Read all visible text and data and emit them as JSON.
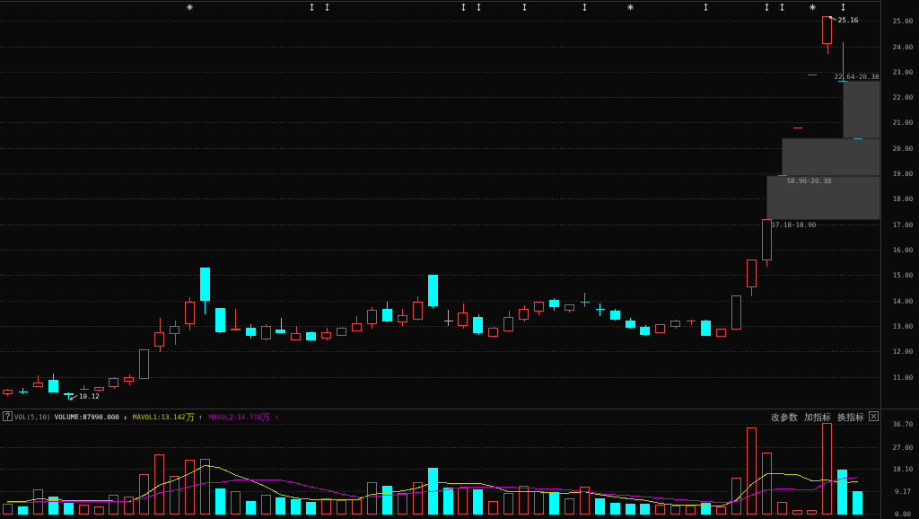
{
  "chart_data": [
    {
      "type": "candlestick",
      "categories": [
        null,
        null,
        null,
        null,
        null,
        null,
        null,
        null,
        null,
        null,
        null,
        null,
        null,
        null,
        null,
        null,
        null,
        null,
        null,
        null,
        null,
        null,
        null,
        null,
        null,
        null,
        null,
        null,
        null,
        null,
        null,
        null,
        null,
        null,
        null,
        null,
        null,
        null,
        null,
        null,
        null,
        null,
        null,
        null,
        null,
        null,
        null,
        null,
        null,
        null,
        null,
        null,
        null,
        null,
        null,
        null,
        null,
        null
      ],
      "ohlc": [
        [
          10.32,
          10.51,
          10.26,
          10.48
        ],
        [
          10.42,
          10.58,
          10.33,
          10.42
        ],
        [
          10.61,
          11.06,
          10.6,
          10.76
        ],
        [
          10.85,
          11.12,
          10.41,
          10.41
        ],
        [
          10.33,
          10.38,
          10.12,
          10.32
        ],
        [
          10.52,
          10.67,
          10.44,
          10.52
        ],
        [
          10.48,
          10.6,
          10.42,
          10.59
        ],
        [
          10.61,
          11,
          10.54,
          10.93
        ],
        [
          10.84,
          11.08,
          10.68,
          10.98
        ],
        [
          10.94,
          12.07,
          10.94,
          12.07
        ],
        [
          12.2,
          13.32,
          11.96,
          12.72
        ],
        [
          12.71,
          13.21,
          12.27,
          12.99
        ],
        [
          13.08,
          14.13,
          12.84,
          13.92
        ],
        [
          15.27,
          15.27,
          13.47,
          14.01
        ],
        [
          13.69,
          13.69,
          12.7,
          12.76
        ],
        [
          12.87,
          13.66,
          12.81,
          12.89
        ],
        [
          12.91,
          13.06,
          12.51,
          12.64
        ],
        [
          12.48,
          13.06,
          12.42,
          12.99
        ],
        [
          12.85,
          13.32,
          12.73,
          12.73
        ],
        [
          12.44,
          13,
          12.44,
          12.71
        ],
        [
          12.73,
          12.78,
          12.45,
          12.45
        ],
        [
          12.54,
          12.93,
          12.45,
          12.72
        ],
        [
          12.63,
          12.96,
          12.63,
          12.9
        ],
        [
          12.81,
          13.39,
          12.81,
          13.09
        ],
        [
          13.08,
          13.75,
          12.9,
          13.62
        ],
        [
          13.67,
          13.95,
          13.15,
          13.21
        ],
        [
          13.15,
          13.66,
          13.01,
          13.41
        ],
        [
          13.28,
          14.16,
          13.21,
          13.93
        ],
        [
          15,
          15,
          13.72,
          13.79
        ],
        [
          13.21,
          13.63,
          13.01,
          13.21
        ],
        [
          13.03,
          13.88,
          12.9,
          13.5
        ],
        [
          13.33,
          13.46,
          12.66,
          12.73
        ],
        [
          12.6,
          12.96,
          12.55,
          12.9
        ],
        [
          12.79,
          13.6,
          12.77,
          13.34
        ],
        [
          13.28,
          13.82,
          13.16,
          13.67
        ],
        [
          13.59,
          13.92,
          13.41,
          13.92
        ],
        [
          14,
          14.08,
          13.61,
          13.76
        ],
        [
          13.61,
          13.85,
          13.54,
          13.82
        ],
        [
          13.92,
          14.3,
          13.75,
          13.92
        ],
        [
          13.64,
          13.9,
          13.39,
          13.64
        ],
        [
          13.57,
          13.68,
          13.21,
          13.25
        ],
        [
          13.19,
          13.3,
          12.88,
          12.94
        ],
        [
          12.95,
          13.05,
          12.6,
          12.66
        ],
        [
          12.73,
          13.04,
          12.7,
          13.04
        ],
        [
          12.98,
          13.25,
          12.9,
          13.19
        ],
        [
          13.2,
          13.25,
          13.04,
          13.2
        ],
        [
          13.2,
          13.24,
          12.6,
          12.63
        ],
        [
          12.6,
          12.9,
          12.57,
          12.87
        ],
        [
          12.88,
          14.18,
          12.85,
          14.18
        ],
        [
          14.53,
          15.6,
          14.16,
          15.6
        ],
        [
          15.59,
          17.18,
          15.33,
          17.18
        ],
        [
          18.9,
          18.9,
          18.9,
          18.9
        ],
        [
          20.79,
          20.79,
          20.79,
          20.79
        ],
        [
          22.87,
          22.87,
          22.87,
          22.87
        ],
        [
          24.09,
          25.16,
          23.69,
          25.16
        ],
        [
          22.64,
          24.16,
          22.64,
          22.64
        ],
        [
          20.38,
          20.38,
          20.38,
          20.38
        ],
        null
      ],
      "colors": [
        "#e04545",
        "#00ffff",
        "#e04545",
        "#00ffff",
        "#00ffff",
        "#e04545",
        "#e04545",
        "#e04545",
        "#e04545",
        "#e04545",
        "#e04545",
        "#e04545",
        "#e04545",
        "#00ffff",
        "#00ffff",
        "#e04545",
        "#00ffff",
        "#e04545",
        "#00ffff",
        "#e04545",
        "#00ffff",
        "#e04545",
        "#e04545",
        "#e04545",
        "#e04545",
        "#00ffff",
        "#e04545",
        "#e04545",
        "#00ffff",
        "#00ffff",
        "#e04545",
        "#00ffff",
        "#e04545",
        "#e04545",
        "#e04545",
        "#e04545",
        "#00ffff",
        "#e04545",
        "#2ab0b0",
        "#00ffff",
        "#00ffff",
        "#00ffff",
        "#00ffff",
        "#e04545",
        "#e04545",
        "#e04545",
        "#00ffff",
        "#e04545",
        "#e04545",
        "#e04545",
        "#e04545",
        "#e04545",
        "#e04545",
        "#e04545",
        "#e04545",
        "#2ab0b0",
        "#2ab0b0",
        null
      ],
      "ylim": [
        9.75,
        25.75
      ],
      "yticks": [
        {
          "value": 11,
          "label": "11.00"
        },
        {
          "value": 12,
          "label": "12.00"
        },
        {
          "value": 13,
          "label": "13.00"
        },
        {
          "value": 14,
          "label": "14.00"
        },
        {
          "value": 15,
          "label": "15.00"
        },
        {
          "value": 16,
          "label": "16.00"
        },
        {
          "value": 17,
          "label": "17.00"
        },
        {
          "value": 18,
          "label": "18.00"
        },
        {
          "value": 19,
          "label": "19.00"
        },
        {
          "value": 20,
          "label": "20.00"
        },
        {
          "value": 21,
          "label": "21.00"
        },
        {
          "value": 22,
          "label": "22.00"
        },
        {
          "value": 23,
          "label": "23.00"
        },
        {
          "value": 24,
          "label": "24.00"
        },
        {
          "value": 25,
          "label": "25.00"
        }
      ],
      "grid": "y",
      "tick_labels": "y",
      "bands": [
        {
          "axis": "y",
          "from": 17.18,
          "to": 18.9,
          "label": "17.18-18.90",
          "color": "#3d3d3d"
        },
        {
          "axis": "y",
          "from": 18.9,
          "to": 20.38,
          "label": "18.90-20.38",
          "color": "#3d3d3d"
        },
        {
          "axis": "y",
          "from": 22.64,
          "to": 20.38,
          "label": "22.64-20.38",
          "color": "#3d3d3d"
        }
      ],
      "annotations": [
        "10.12",
        "25.16"
      ]
    },
    {
      "type": "bar",
      "title": "VOL(5,10)",
      "categories": [
        null,
        null,
        null,
        null,
        null,
        null,
        null,
        null,
        null,
        null,
        null,
        null,
        null,
        null,
        null,
        null,
        null,
        null,
        null,
        null,
        null,
        null,
        null,
        null,
        null,
        null,
        null,
        null,
        null,
        null,
        null,
        null,
        null,
        null,
        null,
        null,
        null,
        null,
        null,
        null,
        null,
        null,
        null,
        null,
        null,
        null,
        null,
        null,
        null,
        null,
        null,
        null,
        null,
        null,
        null,
        null,
        null,
        null
      ],
      "series": [
        {
          "type": "bar",
          "color": "#e04545",
          "values": [
            4.0,
            null,
            9.5,
            null,
            null,
            3.5,
            2.8,
            7.4,
            6.7,
            15.8,
            23.9,
            15.3,
            21.8,
            22.1,
            null,
            8.8,
            null,
            7.4,
            null,
            null,
            null,
            6.0,
            5.3,
            5.7,
            12.7,
            null,
            8.4,
            12.7,
            null,
            null,
            10.4,
            null,
            4.9,
            8.4,
            11.2,
            8.8,
            null,
            6.0,
            10.6,
            null,
            null,
            null,
            null,
            3.3,
            3.2,
            3.2,
            null,
            2.6,
            14.5,
            34.9,
            24.7,
            4.6,
            1.2,
            1.4,
            36.7,
            null,
            null,
            null
          ]
        },
        {
          "type": "bar",
          "color": "#00ffff",
          "values": [
            null,
            2.9,
            null,
            6.9,
            4.2,
            null,
            null,
            null,
            null,
            null,
            null,
            null,
            null,
            null,
            10.2,
            null,
            5.1,
            null,
            6.3,
            5.5,
            4.7,
            null,
            null,
            null,
            null,
            11.1,
            null,
            null,
            18.6,
            10.4,
            null,
            9.6,
            null,
            null,
            null,
            null,
            8.5,
            null,
            null,
            6.1,
            4.2,
            4.0,
            3.7,
            null,
            null,
            null,
            4.2,
            null,
            null,
            null,
            null,
            null,
            null,
            null,
            null,
            17.7,
            8.8,
            null
          ]
        },
        {
          "type": "line",
          "name": "MAVOL1:13.142万 ↑",
          "color": "#c8c800",
          "values": [
            4.8,
            4.8,
            6.0,
            5.7,
            5.3,
            5.3,
            5.3,
            5.1,
            4.8,
            7.5,
            11.6,
            13.6,
            16.3,
            19.6,
            18.6,
            15.7,
            13.6,
            11.0,
            7.7,
            6.3,
            5.8,
            5.7,
            5.6,
            5.7,
            7.8,
            8.7,
            9.2,
            10.4,
            12.7,
            12.4,
            12.2,
            12.4,
            11.0,
            8.9,
            8.9,
            8.8,
            8.4,
            8.4,
            8.9,
            7.7,
            6.8,
            6.0,
            5.4,
            4.2,
            3.5,
            3.4,
            3.3,
            3.0,
            5.4,
            11.9,
            16.1,
            16.1,
            15.9,
            13.3,
            13.7,
            12.4,
            13.1,
            null
          ]
        },
        {
          "type": "line",
          "name": "MAVOL2:14.778万 ↑",
          "color": "#c000c0",
          "values": [
            4.6,
            4.6,
            4.8,
            4.9,
            4.9,
            5.0,
            5.0,
            5.1,
            5.1,
            6.3,
            8.4,
            9.5,
            11.0,
            12.4,
            12.7,
            13.6,
            13.7,
            13.7,
            13.6,
            12.4,
            10.8,
            9.6,
            8.0,
            6.8,
            6.9,
            7.5,
            7.8,
            8.7,
            9.0,
            9.8,
            10.8,
            10.8,
            10.8,
            10.8,
            10.3,
            10.2,
            10.1,
            9.6,
            9.0,
            8.1,
            7.7,
            7.3,
            6.8,
            6.3,
            5.8,
            5.4,
            4.9,
            4.6,
            4.9,
            7.5,
            9.6,
            10.1,
            9.8,
            9.5,
            12.7,
            14.2,
            14.7,
            null
          ]
        }
      ],
      "stacked": true,
      "ylim": [
        0,
        42
      ],
      "yticks": [
        {
          "value": 0,
          "label": "0.00"
        },
        9.17,
        {
          "value": 18.1,
          "label": "18.10"
        },
        {
          "value": 27,
          "label": "27.00"
        },
        {
          "value": 36.7,
          "label": "36.70"
        }
      ],
      "grid": "y",
      "legend": "top left",
      "tick_labels": "y",
      "annotations": [
        "VOLUME:87990.000 ↓",
        "改参数",
        "加指标",
        "换指标"
      ]
    }
  ]
}
